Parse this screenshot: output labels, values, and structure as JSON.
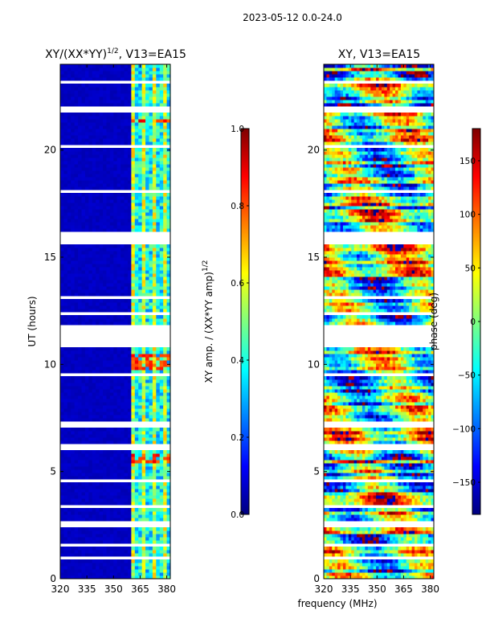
{
  "suptitle": "2023-05-12 0.0-24.0",
  "xlabel": "frequency (MHz)",
  "colors": {
    "jet": [
      "#00007f",
      "#0000ff",
      "#007fff",
      "#00ffff",
      "#7fff7f",
      "#ffff00",
      "#ff7f00",
      "#ff0000",
      "#7f0000"
    ],
    "flag": "#ffffff"
  },
  "chart_data": [
    {
      "type": "heatmap",
      "title_main": "XY/(XX*YY)",
      "title_exp": "1/2",
      "title_suffix": ", V13=EA15",
      "xlabel": "frequency (MHz)",
      "ylabel": "UT (hours)",
      "xlim": [
        320,
        382
      ],
      "ylim": [
        0,
        24
      ],
      "xticks": [
        320,
        335,
        350,
        365,
        380
      ],
      "yticks": [
        0,
        5,
        10,
        15,
        20
      ],
      "colorbar": {
        "label_main": "XY amp. / (XX*YY amp)",
        "label_exp": "1/2",
        "range": [
          0.0,
          1.0
        ],
        "ticks": [
          "0.0",
          "0.2",
          "0.4",
          "0.6",
          "0.8",
          "1.0"
        ],
        "tick_values": [
          0.0,
          0.2,
          0.4,
          0.6,
          0.8,
          1.0
        ]
      },
      "description_values": {
        "low_band_mhz": [
          320,
          360
        ],
        "low_band_value": 0.05,
        "high_band_mhz": [
          360,
          382
        ],
        "high_band_value_range": [
          0.3,
          0.6
        ],
        "rfi_hours": [
          [
            9.7,
            10.5
          ],
          [
            5.3,
            5.8
          ],
          [
            21.2,
            21.4
          ]
        ],
        "rfi_value": 0.9
      },
      "flagged_hours": [
        [
          10.8,
          11.9
        ],
        [
          15.6,
          16.2
        ],
        [
          21.8,
          22.1
        ],
        [
          6.0,
          6.3
        ],
        [
          2.4,
          2.7
        ],
        [
          7.1,
          7.3
        ],
        [
          9.4,
          9.6
        ],
        [
          18.0,
          18.2
        ],
        [
          3.3,
          3.4
        ],
        [
          1.5,
          1.6
        ],
        [
          0.9,
          1.0
        ],
        [
          12.3,
          12.4
        ],
        [
          14.2,
          14.3
        ],
        [
          20.1,
          20.2
        ],
        [
          23.1,
          23.2
        ],
        [
          4.5,
          4.6
        ],
        [
          8.5,
          8.6
        ],
        [
          13.1,
          13.2
        ],
        [
          17.2,
          17.3
        ],
        [
          19.0,
          19.1
        ]
      ]
    },
    {
      "type": "heatmap",
      "title": "XY, V13=EA15",
      "xlabel": "frequency (MHz)",
      "ylabel": "",
      "xlim": [
        320,
        382
      ],
      "ylim": [
        0,
        24
      ],
      "xticks": [
        320,
        335,
        350,
        365,
        380
      ],
      "yticks": [
        0,
        5,
        10,
        15,
        20
      ],
      "colorbar": {
        "label": "phase (deg)",
        "range": [
          -180,
          180
        ],
        "ticks": [
          "150",
          "100",
          "50",
          "0",
          "−50",
          "−100",
          "−150"
        ],
        "tick_values": [
          150,
          100,
          50,
          0,
          -50,
          -100,
          -150
        ]
      },
      "flagged_hours": [
        [
          10.8,
          11.9
        ],
        [
          15.6,
          16.2
        ],
        [
          21.8,
          22.1
        ],
        [
          6.0,
          6.3
        ],
        [
          2.4,
          2.7
        ],
        [
          7.1,
          7.3
        ],
        [
          9.4,
          9.6
        ],
        [
          18.0,
          18.2
        ],
        [
          3.3,
          3.4
        ],
        [
          1.5,
          1.6
        ],
        [
          0.9,
          1.0
        ],
        [
          12.3,
          12.4
        ],
        [
          14.2,
          14.3
        ],
        [
          20.1,
          20.2
        ],
        [
          23.1,
          23.2
        ],
        [
          4.5,
          4.6
        ],
        [
          8.5,
          8.6
        ],
        [
          13.1,
          13.2
        ],
        [
          17.2,
          17.3
        ],
        [
          19.0,
          19.1
        ]
      ]
    }
  ]
}
